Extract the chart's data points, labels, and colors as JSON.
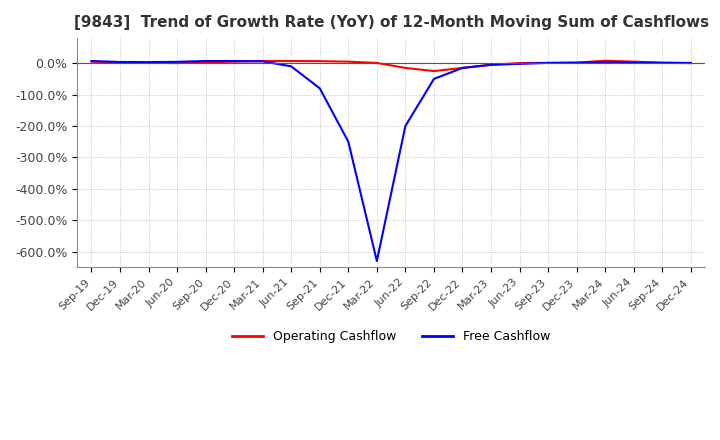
{
  "title": "[9843]  Trend of Growth Rate (YoY) of 12-Month Moving Sum of Cashflows",
  "title_fontsize": 11,
  "background_color": "#ffffff",
  "grid_color": "#aaaaaa",
  "ylim": [
    -650,
    80
  ],
  "yticks": [
    0,
    -100,
    -200,
    -300,
    -400,
    -500,
    -600
  ],
  "ytick_labels": [
    "0.0%",
    "-100.0%",
    "-200.0%",
    "-300.0%",
    "-400.0%",
    "-500.0%",
    "-600.0%"
  ],
  "legend_entries": [
    "Operating Cashflow",
    "Free Cashflow"
  ],
  "legend_colors": [
    "#ff0000",
    "#0000ff"
  ],
  "x_labels": [
    "Sep-19",
    "Dec-19",
    "Mar-20",
    "Jun-20",
    "Sep-20",
    "Dec-20",
    "Mar-21",
    "Jun-21",
    "Sep-21",
    "Dec-21",
    "Mar-22",
    "Jun-22",
    "Sep-22",
    "Dec-22",
    "Mar-23",
    "Jun-23",
    "Sep-23",
    "Dec-23",
    "Mar-24",
    "Jun-24",
    "Sep-24",
    "Dec-24"
  ],
  "operating_cashflow": [
    5.0,
    2.5,
    1.5,
    0.5,
    3.0,
    5.0,
    7.0,
    7.0,
    6.5,
    5.0,
    1.0,
    -15.0,
    -25.0,
    -15.0,
    -5.0,
    0.5,
    1.0,
    2.0,
    8.0,
    5.0,
    2.0,
    1.0
  ],
  "free_cashflow": [
    7.0,
    4.0,
    3.5,
    4.5,
    7.0,
    7.0,
    6.0,
    -10.0,
    -80.0,
    -250.0,
    -630.0,
    -200.0,
    -50.0,
    -15.0,
    -5.0,
    -2.0,
    1.0,
    1.5,
    3.0,
    2.0,
    1.0,
    0.5
  ]
}
